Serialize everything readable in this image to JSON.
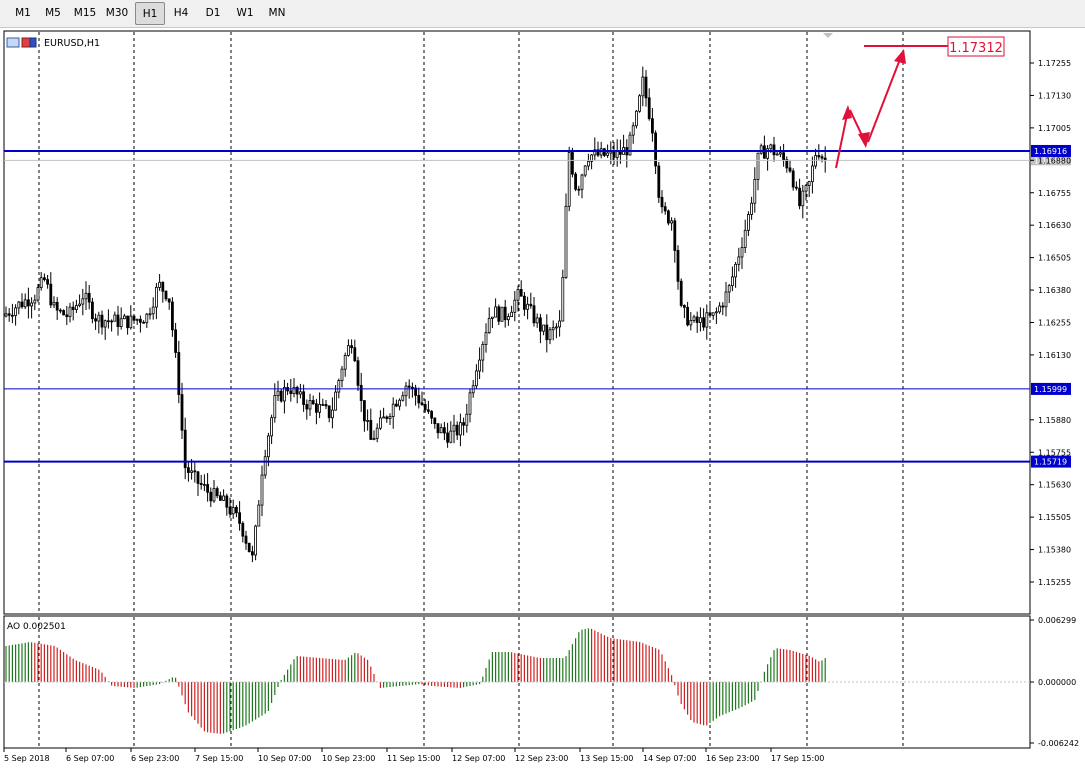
{
  "toolbar": {
    "timeframes": [
      "M1",
      "M5",
      "M15",
      "M30",
      "H1",
      "H4",
      "D1",
      "W1",
      "MN"
    ],
    "active": "H1"
  },
  "chart": {
    "symbol_label": "EURUSD,H1",
    "price_ticks": [
      "1.17255",
      "1.17130",
      "1.17005",
      "1.16880",
      "1.16755",
      "1.16630",
      "1.16505",
      "1.16380",
      "1.16255",
      "1.16130",
      "1.15880",
      "1.15755",
      "1.15630",
      "1.15505",
      "1.15380",
      "1.15255"
    ],
    "current_price_label": "1.16880",
    "levels": [
      {
        "value": 1.16916,
        "label": "1.16916",
        "color": "#0000cc"
      },
      {
        "value": 1.15999,
        "label": "1.15999",
        "color": "#0000cc"
      },
      {
        "value": 1.15719,
        "label": "1.15719",
        "color": "#0000cc"
      }
    ],
    "target": {
      "value": 1.17312,
      "label": "1.17312",
      "color": "#e8001c"
    },
    "time_labels": [
      "5 Sep 2018",
      "6 Sep 07:00",
      "6 Sep 23:00",
      "7 Sep 15:00",
      "10 Sep 07:00",
      "10 Sep 23:00",
      "11 Sep 15:00",
      "12 Sep 07:00",
      "12 Sep 23:00",
      "13 Sep 15:00",
      "14 Sep 07:00",
      "16 Sep 23:00",
      "17 Sep 15:00"
    ]
  },
  "indicator": {
    "label": "AO 0.002501",
    "ticks": [
      "0.006299",
      "0.000000",
      "-0.006242"
    ],
    "up_color": "#1f7a1f",
    "down_color": "#cc2222"
  }
}
